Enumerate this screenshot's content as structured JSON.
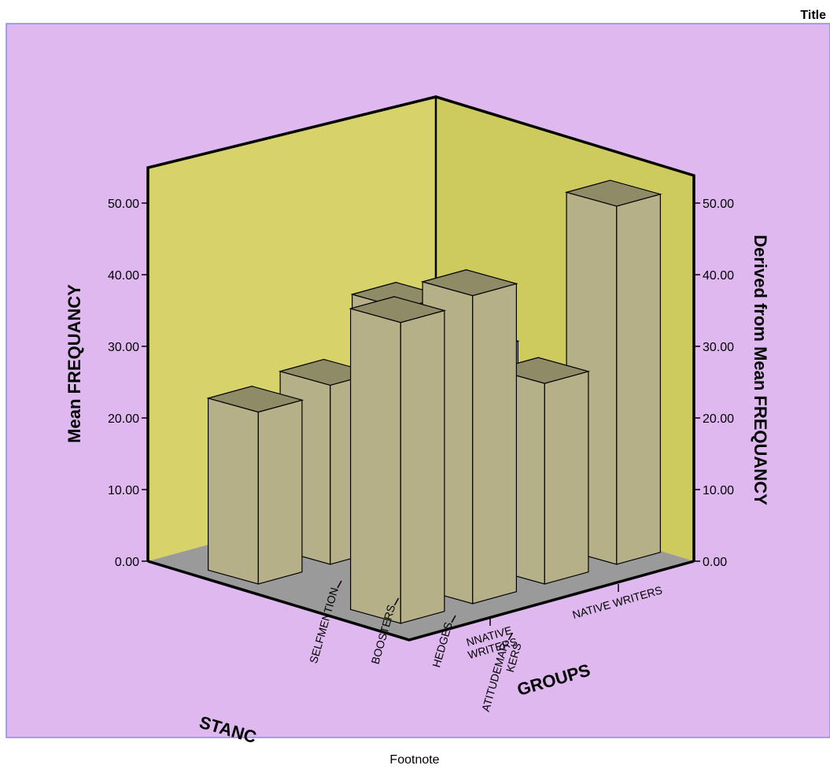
{
  "chart_data": {
    "type": "bar",
    "subtype": "3d-clustered",
    "title": "Title",
    "footnote": "Footnote",
    "ylabel": "Mean FREQUANCY",
    "ylabel_right": "Derived from Mean FREQUANCY",
    "xlabel": "STANC",
    "zlabel": "GROUPS",
    "ylim": [
      0,
      55
    ],
    "yticks": [
      "0.00",
      "10.00",
      "20.00",
      "30.00",
      "40.00",
      "50.00"
    ],
    "categories": [
      "SELFMENTION",
      "BOOSTERS",
      "HEDGES",
      "ATITUDEMAR-\nKERS"
    ],
    "groups": [
      "NNATIVE\nWRITERS",
      "NATIVE WRITERS"
    ],
    "series": [
      {
        "values": [
          24,
          33,
          25,
          24
        ]
      },
      {
        "values": [
          50,
          28,
          43,
          42
        ]
      }
    ],
    "colors": {
      "plot_background": "#deb8ef",
      "border": "#8a8ae6",
      "back_wall": "#d7d36a",
      "floor": "#9a9a9a",
      "bar_front": "#b5b087",
      "bar_top": "#8f8b67",
      "bar_side": "#a39e76"
    }
  }
}
